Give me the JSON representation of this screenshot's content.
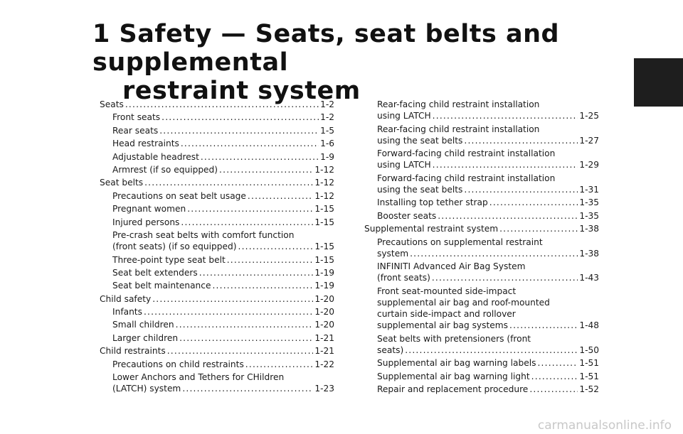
{
  "header": {
    "title_line1": "1 Safety — Seats, seat belts and supplemental",
    "title_line2": "restraint system"
  },
  "toc": {
    "left": [
      {
        "level": 1,
        "text": "Seats",
        "page": "1-2"
      },
      {
        "level": 2,
        "text": "Front seats",
        "page": "1-2"
      },
      {
        "level": 2,
        "text": "Rear seats",
        "page": "1-5"
      },
      {
        "level": 2,
        "text": "Head restraints",
        "page": "1-6"
      },
      {
        "level": 2,
        "text": "Adjustable headrest",
        "page": "1-9"
      },
      {
        "level": 2,
        "text": "Armrest (if so equipped)",
        "page": "1-12"
      },
      {
        "level": 1,
        "text": "Seat belts",
        "page": "1-12"
      },
      {
        "level": 2,
        "text": "Precautions on seat belt usage",
        "page": "1-12"
      },
      {
        "level": 2,
        "text": "Pregnant women",
        "page": "1-15"
      },
      {
        "level": 2,
        "text": "Injured persons",
        "page": "1-15"
      },
      {
        "level": 2,
        "pre": [
          "Pre-crash seat belts with comfort function"
        ],
        "text": "(front seats) (if so equipped)",
        "page": "1-15"
      },
      {
        "level": 2,
        "text": "Three-point type seat belt",
        "page": "1-15"
      },
      {
        "level": 2,
        "text": "Seat belt extenders",
        "page": "1-19"
      },
      {
        "level": 2,
        "text": "Seat belt maintenance",
        "page": "1-19"
      },
      {
        "level": 1,
        "text": "Child safety",
        "page": "1-20"
      },
      {
        "level": 2,
        "text": "Infants",
        "page": "1-20"
      },
      {
        "level": 2,
        "text": "Small children",
        "page": "1-20"
      },
      {
        "level": 2,
        "text": "Larger children",
        "page": "1-21"
      },
      {
        "level": 1,
        "text": "Child restraints",
        "page": "1-21"
      },
      {
        "level": 2,
        "text": "Precautions on child restraints",
        "page": "1-22"
      },
      {
        "level": 2,
        "pre": [
          "Lower Anchors and Tethers for CHildren"
        ],
        "text": "(LATCH) system",
        "page": "1-23"
      }
    ],
    "right": [
      {
        "level": 2,
        "pre": [
          "Rear-facing child restraint installation"
        ],
        "text": "using LATCH",
        "page": "1-25"
      },
      {
        "level": 2,
        "pre": [
          "Rear-facing child restraint installation"
        ],
        "text": "using the seat belts",
        "page": "1-27"
      },
      {
        "level": 2,
        "pre": [
          "Forward-facing child restraint installation"
        ],
        "text": "using LATCH",
        "page": "1-29"
      },
      {
        "level": 2,
        "pre": [
          "Forward-facing child restraint installation"
        ],
        "text": "using the seat belts",
        "page": "1-31"
      },
      {
        "level": 2,
        "text": "Installing top tether strap",
        "page": "1-35"
      },
      {
        "level": 2,
        "text": "Booster seats",
        "page": "1-35"
      },
      {
        "level": 1,
        "text": "Supplemental restraint system",
        "page": "1-38"
      },
      {
        "level": 2,
        "pre": [
          "Precautions on supplemental restraint"
        ],
        "text": "system",
        "page": "1-38"
      },
      {
        "level": 2,
        "pre": [
          "INFINITI Advanced Air Bag System"
        ],
        "text": "(front seats)",
        "page": "1-43"
      },
      {
        "level": 2,
        "pre": [
          "Front seat-mounted side-impact",
          "supplemental air bag and roof-mounted",
          "curtain side-impact and rollover"
        ],
        "text": "supplemental air bag systems",
        "page": "1-48"
      },
      {
        "level": 2,
        "pre": [
          "Seat belts with pretensioners (front"
        ],
        "text": "seats)",
        "page": "1-50"
      },
      {
        "level": 2,
        "text": "Supplemental air bag warning labels",
        "page": "1-51"
      },
      {
        "level": 2,
        "text": "Supplemental air bag warning light",
        "page": "1-51"
      },
      {
        "level": 2,
        "text": "Repair and replacement procedure",
        "page": "1-52"
      }
    ]
  },
  "footer": {
    "watermark": "carmanualsonline.info"
  }
}
